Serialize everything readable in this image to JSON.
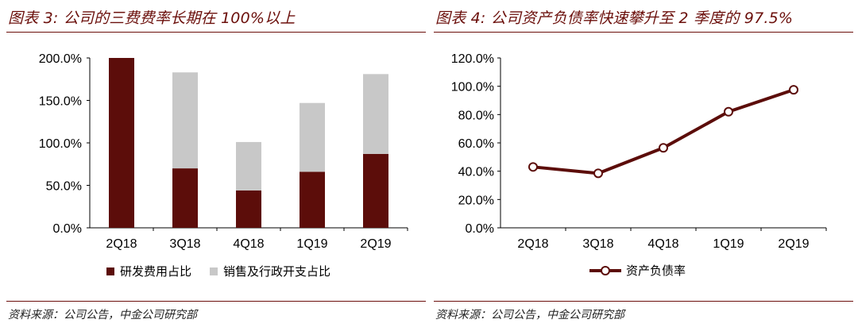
{
  "panels": {
    "left": {
      "title": "图表 3: 公司的三费费率长期在 100%以上",
      "source": "资料来源：公司公告，中金公司研究部"
    },
    "right": {
      "title": "图表 4: 公司资产负债率快速攀升至 2 季度的 97.5%",
      "source": "资料来源：公司公告，中金公司研究部"
    }
  },
  "colors": {
    "dark": "#5c0d0a",
    "light": "#c8c8c8",
    "accent": "#6b0f0b"
  },
  "chart_data": [
    {
      "type": "bar",
      "stacked": true,
      "categories": [
        "2Q18",
        "3Q18",
        "4Q18",
        "1Q19",
        "2Q19"
      ],
      "series": [
        {
          "name": "研发费用占比",
          "values": [
            200.0,
            70.0,
            44.0,
            66.0,
            87.0
          ]
        },
        {
          "name": "销售及行政开支占比",
          "values": [
            0.0,
            113.0,
            57.0,
            81.0,
            94.0
          ]
        }
      ],
      "yticks": [
        "0.0%",
        "50.0%",
        "100.0%",
        "150.0%",
        "200.0%"
      ],
      "ylim": [
        0,
        200
      ],
      "legend": "bottom"
    },
    {
      "type": "line",
      "categories": [
        "2Q18",
        "3Q18",
        "4Q18",
        "1Q19",
        "2Q19"
      ],
      "series": [
        {
          "name": "资产负债率",
          "values": [
            43.0,
            38.5,
            56.5,
            82.0,
            97.5
          ]
        }
      ],
      "yticks": [
        "0.0%",
        "20.0%",
        "40.0%",
        "60.0%",
        "80.0%",
        "100.0%",
        "120.0%"
      ],
      "ylim": [
        0,
        120
      ],
      "legend": "bottom"
    }
  ]
}
